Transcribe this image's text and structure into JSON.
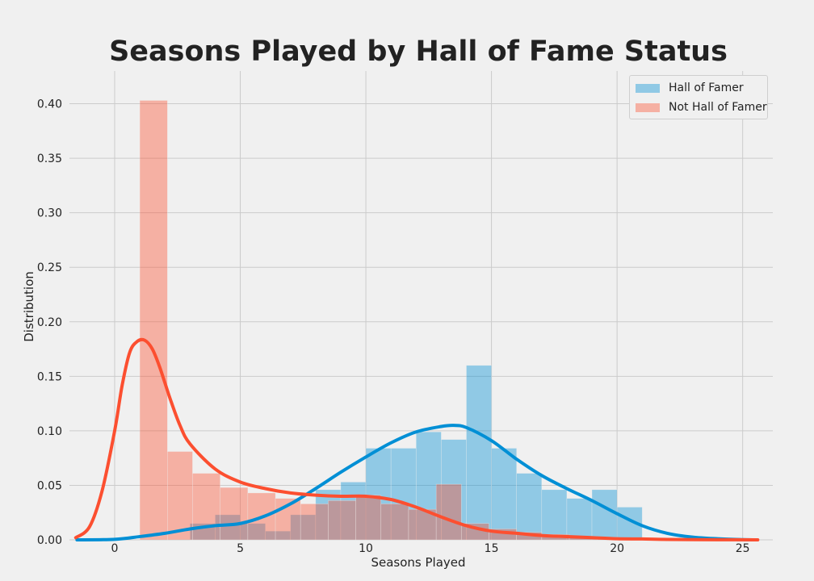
{
  "chart_data": {
    "type": "histogram-kde",
    "title": "Seasons Played by Hall of Fame Status",
    "xlabel": "Seasons Played",
    "ylabel": "Distribution",
    "xlim": [
      -1.8,
      26.2
    ],
    "ylim": [
      0,
      0.43
    ],
    "x_ticks": [
      0,
      5,
      10,
      15,
      20,
      25
    ],
    "y_ticks": [
      "0.00",
      "0.05",
      "0.10",
      "0.15",
      "0.20",
      "0.25",
      "0.30",
      "0.35",
      "0.40"
    ],
    "grid": true,
    "legend_position": "top-right",
    "series": [
      {
        "name": "Hall of Famer",
        "color": "#008fd5",
        "bin_edges": [
          3,
          4,
          5,
          6,
          7,
          8,
          9,
          10,
          11,
          12,
          13,
          14,
          15,
          16,
          17,
          18,
          19,
          20,
          21
        ],
        "hist_values": [
          0.015,
          0.023,
          0.015,
          0.008,
          0.023,
          0.046,
          0.053,
          0.084,
          0.084,
          0.099,
          0.092,
          0.16,
          0.084,
          0.061,
          0.046,
          0.038,
          0.046,
          0.03
        ],
        "kde_x": [
          -1.5,
          0,
          1,
          2,
          3,
          4,
          5,
          6,
          7,
          8,
          9,
          10,
          11,
          12,
          13,
          13.5,
          14,
          15,
          16,
          17,
          18,
          19,
          20,
          21,
          22,
          23,
          24,
          25,
          25.5
        ],
        "kde_y": [
          0.0,
          0.0005,
          0.003,
          0.006,
          0.01,
          0.013,
          0.015,
          0.022,
          0.033,
          0.047,
          0.062,
          0.076,
          0.089,
          0.099,
          0.104,
          0.105,
          0.103,
          0.091,
          0.074,
          0.059,
          0.047,
          0.036,
          0.024,
          0.013,
          0.006,
          0.0025,
          0.001,
          0.0002,
          0.0
        ]
      },
      {
        "name": "Not Hall of Famer",
        "color": "#fc4f30",
        "bin_edges": [
          1,
          2.1,
          3.1,
          4.2,
          5.3,
          6.4,
          7.4,
          8.5,
          9.6,
          10.6,
          11.7,
          12.8,
          13.8,
          14.9,
          16,
          17,
          18.1,
          19.2,
          20.3,
          21.3,
          22.4,
          23.5,
          24.5,
          25.6
        ],
        "hist_values": [
          0.403,
          0.081,
          0.061,
          0.048,
          0.043,
          0.038,
          0.033,
          0.036,
          0.041,
          0.033,
          0.028,
          0.051,
          0.015,
          0.01,
          0.007,
          0.005,
          0.003,
          0.002,
          0.001,
          0.001,
          0.0005,
          0.0003,
          0.0002
        ],
        "kde_x": [
          -1.55,
          -1,
          -0.5,
          0,
          0.3,
          0.6,
          0.9,
          1.2,
          1.5,
          1.8,
          2.2,
          2.6,
          3,
          4,
          5,
          6,
          7,
          8,
          9,
          10,
          11,
          12,
          13,
          14,
          15,
          16,
          17,
          18,
          19,
          20,
          21,
          22,
          24,
          25.6
        ],
        "kde_y": [
          0.002,
          0.012,
          0.045,
          0.1,
          0.142,
          0.172,
          0.182,
          0.183,
          0.175,
          0.158,
          0.13,
          0.105,
          0.088,
          0.065,
          0.053,
          0.047,
          0.043,
          0.041,
          0.04,
          0.04,
          0.037,
          0.03,
          0.021,
          0.013,
          0.008,
          0.006,
          0.004,
          0.003,
          0.002,
          0.001,
          0.0008,
          0.0004,
          0.0001,
          0.0
        ]
      }
    ]
  }
}
